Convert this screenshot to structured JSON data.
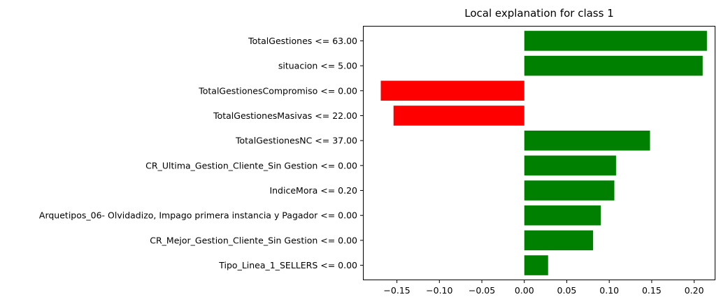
{
  "chart_data": {
    "type": "bar",
    "orientation": "horizontal",
    "title": "Local explanation for class 1",
    "xlabel": "",
    "ylabel": "",
    "xlim": [
      -0.19,
      0.225
    ],
    "xticks": [
      -0.15,
      -0.1,
      -0.05,
      0.0,
      0.05,
      0.1,
      0.15,
      0.2
    ],
    "xtick_labels": [
      "−0.15",
      "−0.10",
      "−0.05",
      "0.00",
      "0.05",
      "0.10",
      "0.15",
      "0.20"
    ],
    "grid": false,
    "legend": null,
    "colors": {
      "positive": "#008000",
      "negative": "#ff0000"
    },
    "bars": [
      {
        "label": "TotalGestiones <= 63.00",
        "value": 0.215
      },
      {
        "label": "situacion <= 5.00",
        "value": 0.21
      },
      {
        "label": "TotalGestionesCompromiso <= 0.00",
        "value": -0.169
      },
      {
        "label": "TotalGestionesMasivas <= 22.00",
        "value": -0.154
      },
      {
        "label": "TotalGestionesNC <= 37.00",
        "value": 0.148
      },
      {
        "label": "CR_Ultima_Gestion_Cliente_Sin Gestion <= 0.00",
        "value": 0.108
      },
      {
        "label": "IndiceMora <= 0.20",
        "value": 0.106
      },
      {
        "label": "Arquetipos_06- Olvidadizo, Impago primera instancia y Pagador <= 0.00",
        "value": 0.09
      },
      {
        "label": "CR_Mejor_Gestion_Cliente_Sin Gestion <= 0.00",
        "value": 0.081
      },
      {
        "label": "Tipo_Linea_1_SELLERS <= 0.00",
        "value": 0.028
      }
    ]
  }
}
